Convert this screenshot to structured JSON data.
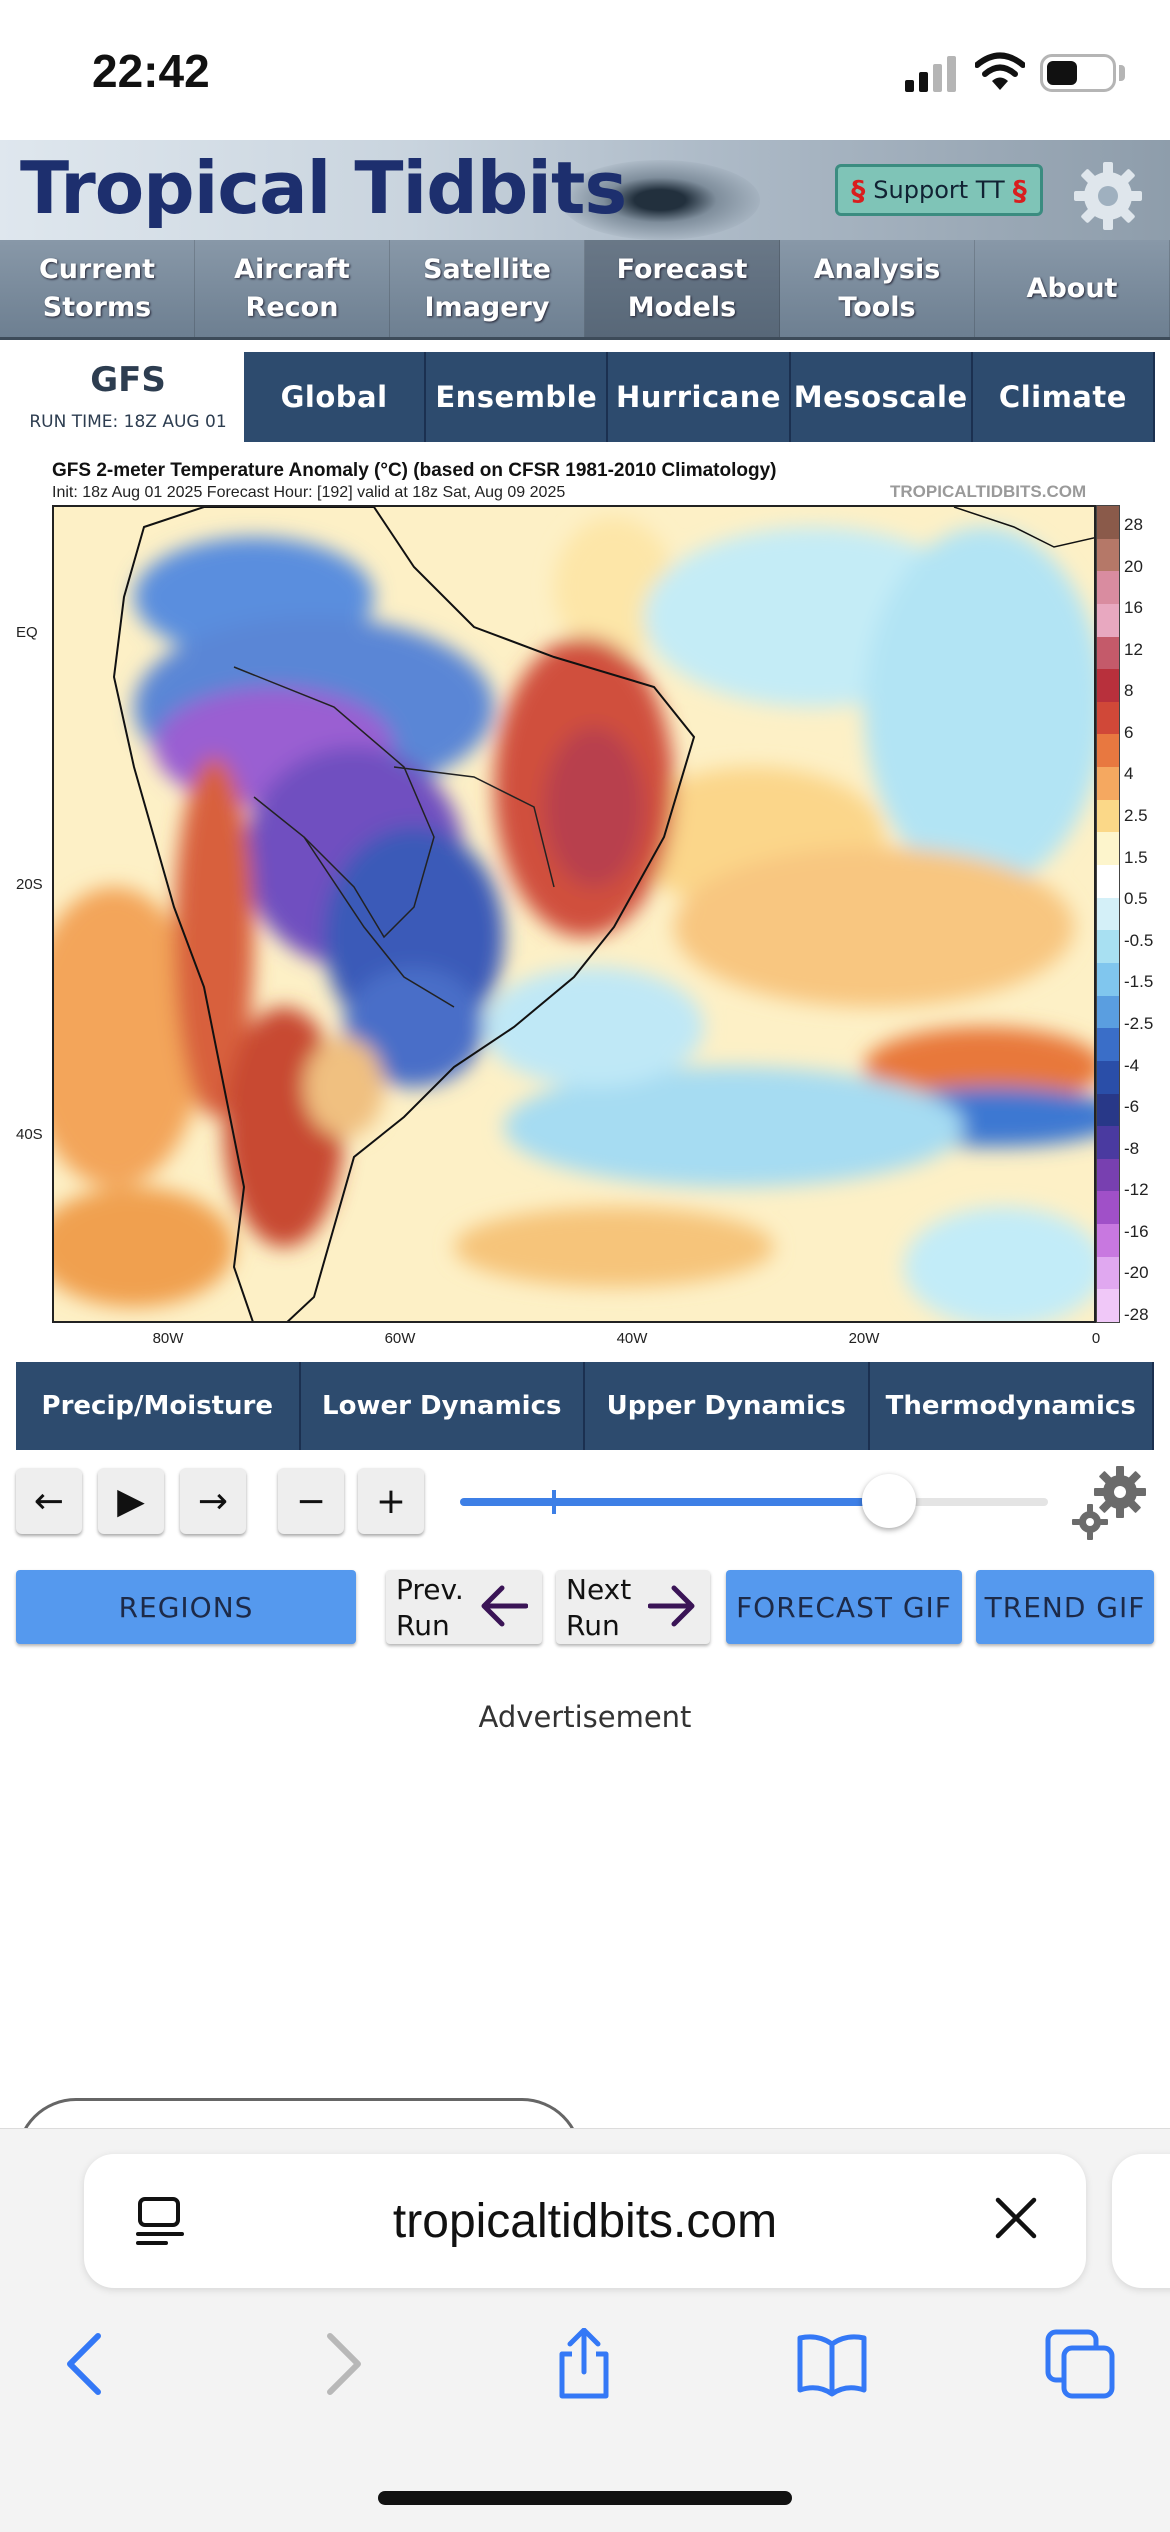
{
  "status_bar": {
    "time": "22:42"
  },
  "header": {
    "logo": "Tropical Tidbits",
    "support_label": "Support TT"
  },
  "main_nav": [
    {
      "line1": "Current",
      "line2": "Storms"
    },
    {
      "line1": "Aircraft",
      "line2": "Recon"
    },
    {
      "line1": "Satellite",
      "line2": "Imagery"
    },
    {
      "line1": "Forecast",
      "line2": "Models"
    },
    {
      "line1": "Analysis",
      "line2": "Tools"
    },
    {
      "line1": "About",
      "line2": ""
    }
  ],
  "model": {
    "name": "GFS",
    "run_time": "RUN TIME: 18Z AUG 01",
    "tabs": [
      "Global",
      "Ensemble",
      "Hurricane",
      "Mesoscale",
      "Climate"
    ]
  },
  "map": {
    "title": "GFS 2-meter Temperature Anomaly (°C) (based on CFSR 1981-2010 Climatology)",
    "subtitle": "Init: 18z Aug 01 2025   Forecast Hour: [192]   valid at 18z Sat, Aug 09 2025",
    "watermark": "TROPICALTIDBITS.COM",
    "lat_labels": [
      "EQ",
      "20S",
      "40S"
    ],
    "lon_labels": [
      "80W",
      "60W",
      "40W",
      "20W",
      "0"
    ],
    "colorbar_labels": [
      "28",
      "20",
      "16",
      "12",
      "8",
      "6",
      "4",
      "2.5",
      "1.5",
      "0.5",
      "-0.5",
      "-1.5",
      "-2.5",
      "-4",
      "-6",
      "-8",
      "-12",
      "-16",
      "-20",
      "-28"
    ],
    "colorbar_colors": [
      "#8a5a4a",
      "#b57868",
      "#d98ca0",
      "#e8a8c0",
      "#c45a6a",
      "#b8303c",
      "#d04838",
      "#e87840",
      "#f5a860",
      "#fbd888",
      "#fdf5cc",
      "#ffffff",
      "#d4f0f8",
      "#a8e0f2",
      "#80c6ee",
      "#5a9ee0",
      "#3a6ec8",
      "#2a4ea8",
      "#283888",
      "#4a3aa0",
      "#7840b0",
      "#a050c8",
      "#c878e0",
      "#e0a8f0",
      "#f0c8f8"
    ]
  },
  "categories": [
    "Precip/Moisture",
    "Lower Dynamics",
    "Upper Dynamics",
    "Thermodynamics"
  ],
  "controls": {
    "prev": "←",
    "play": "▶",
    "next": "→",
    "minus": "−",
    "plus": "+",
    "forecast_position": 0.73
  },
  "buttons": {
    "regions": "REGIONS",
    "prev_run_1": "Prev.",
    "prev_run_2": "Run",
    "next_run_1": "Next",
    "next_run_2": "Run",
    "forecast_gif": "FORECAST GIF",
    "trend_gif": "TREND GIF"
  },
  "advertisement": "Advertisement",
  "browser": {
    "url": "tropicaltidbits.com"
  }
}
